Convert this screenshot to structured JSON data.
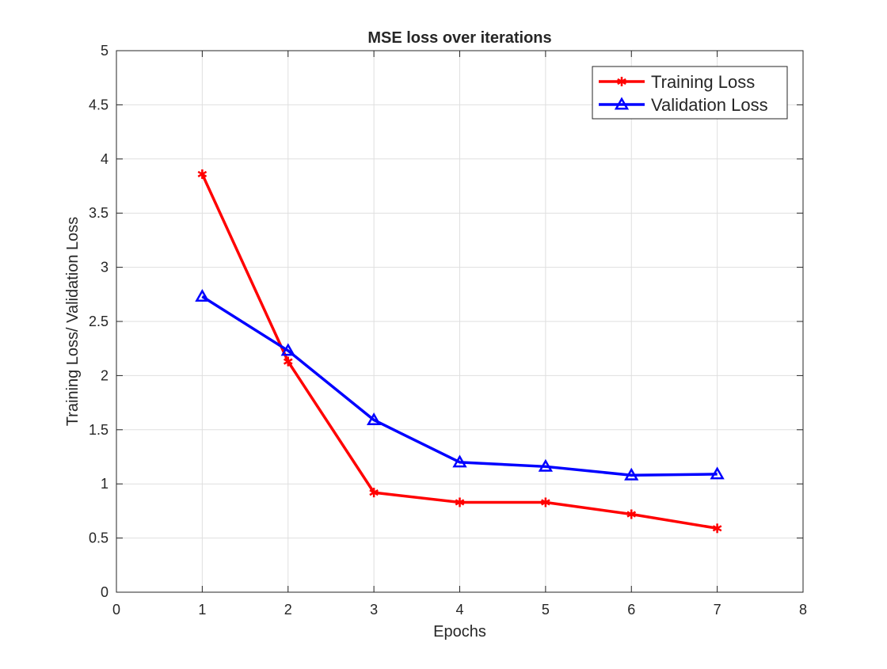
{
  "chart_data": {
    "type": "line",
    "title": "MSE loss over iterations",
    "xlabel": "Epochs",
    "ylabel": "Training Loss/ Validation Loss",
    "xlim": [
      0,
      8
    ],
    "ylim": [
      0,
      5
    ],
    "xticks": [
      "0",
      "1",
      "2",
      "3",
      "4",
      "5",
      "6",
      "7",
      "8"
    ],
    "yticks": [
      "0",
      "0.5",
      "1",
      "1.5",
      "2",
      "2.5",
      "3",
      "3.5",
      "4",
      "4.5",
      "5"
    ],
    "grid": true,
    "legend_position": "top-right",
    "x": [
      1,
      2,
      3,
      4,
      5,
      6,
      7
    ],
    "series": [
      {
        "name": "Training Loss",
        "color": "#ff0000",
        "marker": "asterisk",
        "values": [
          3.86,
          2.13,
          0.92,
          0.83,
          0.83,
          0.72,
          0.59
        ]
      },
      {
        "name": "Validation Loss",
        "color": "#0000ff",
        "marker": "triangle",
        "values": [
          2.73,
          2.23,
          1.59,
          1.2,
          1.16,
          1.08,
          1.09
        ]
      }
    ]
  }
}
